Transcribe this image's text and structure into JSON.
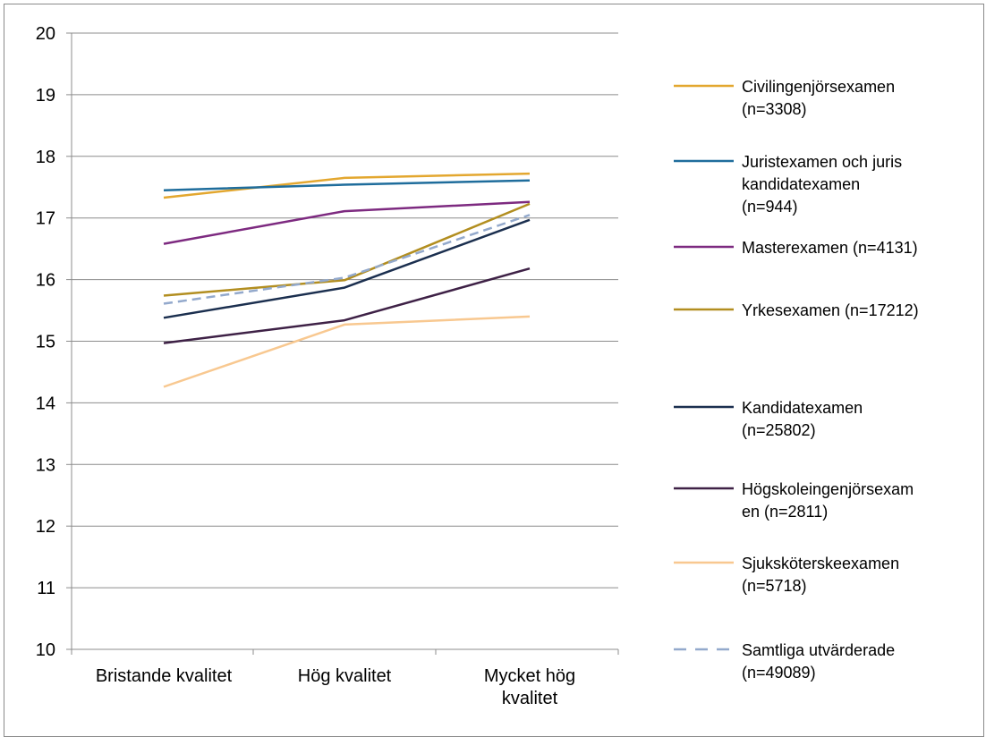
{
  "chart_data": {
    "type": "line",
    "title": "",
    "xlabel": "",
    "ylabel": "",
    "ylim": [
      10,
      20
    ],
    "yticks": [
      10,
      11,
      12,
      13,
      14,
      15,
      16,
      17,
      18,
      19,
      20
    ],
    "grid": true,
    "legend": "right",
    "categories": [
      [
        "Bristande kvalitet"
      ],
      [
        "Hög kvalitet"
      ],
      [
        "Mycket hög",
        "kvalitet"
      ]
    ],
    "series": [
      {
        "name": [
          "Civilingenjörsexamen",
          "(n=3308)"
        ],
        "values": [
          17.33,
          17.65,
          17.72
        ],
        "color": "#E3A72F",
        "dash": false
      },
      {
        "name": [
          "Juristexamen och juris",
          "kandidatexamen",
          "(n=944)"
        ],
        "values": [
          17.45,
          17.54,
          17.61
        ],
        "color": "#1F6D9C",
        "dash": false
      },
      {
        "name": [
          "Masterexamen (n=4131)"
        ],
        "values": [
          16.58,
          17.11,
          17.26
        ],
        "color": "#7D2A80",
        "dash": false
      },
      {
        "name": [
          "Yrkesexamen (n=17212)"
        ],
        "values": [
          15.74,
          15.99,
          17.23
        ],
        "color": "#B28E20",
        "dash": false
      },
      {
        "name": [
          "Kandidatexamen",
          "(n=25802)"
        ],
        "values": [
          15.38,
          15.87,
          16.97
        ],
        "color": "#1B2F4F",
        "dash": false
      },
      {
        "name": [
          "Högskoleingenjörsexam",
          "en (n=2811)"
        ],
        "values": [
          14.97,
          15.34,
          16.18
        ],
        "color": "#3E2146",
        "dash": false
      },
      {
        "name": [
          "Sjuksköterskeexamen",
          "(n=5718)"
        ],
        "values": [
          14.26,
          15.27,
          15.4
        ],
        "color": "#F8C890",
        "dash": false
      },
      {
        "name": [
          "Samtliga utvärderade",
          "(n=49089)"
        ],
        "values": [
          15.61,
          16.03,
          17.05
        ],
        "color": "#93A9CC",
        "dash": true
      }
    ]
  }
}
